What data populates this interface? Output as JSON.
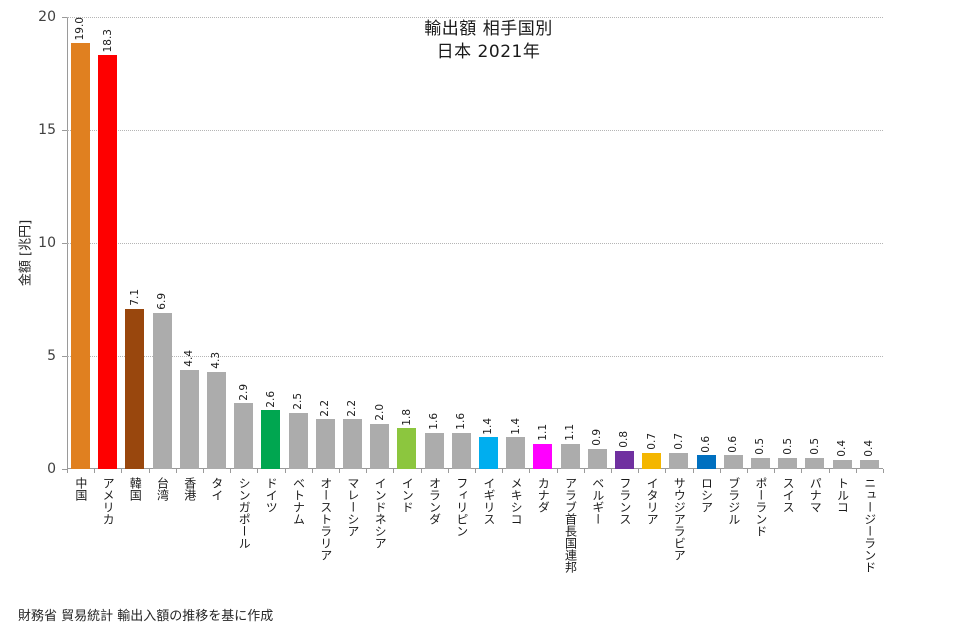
{
  "chart": {
    "title_line1": "輸出額 相手国別",
    "title_line2": "日本 2021年",
    "y_axis_title": "金額 [兆円]",
    "source_note": "財務省 貿易統計 輸出入額の推移を基に作成"
  },
  "chart_data": {
    "type": "bar",
    "title": "輸出額 相手国別 日本 2021年",
    "xlabel": "",
    "ylabel": "金額 [兆円]",
    "ylim": [
      0,
      20
    ],
    "y_ticks": [
      0,
      5,
      10,
      15,
      20
    ],
    "grid": "horizontal dotted lines at 5, 10, 15, 20",
    "legend": "none",
    "categories": [
      "中国",
      "アメリカ",
      "韓国",
      "台湾",
      "香港",
      "タイ",
      "シンガポール",
      "ドイツ",
      "ベトナム",
      "オーストラリア",
      "マレーシア",
      "インドネシア",
      "インド",
      "オランダ",
      "フィリピン",
      "イギリス",
      "メキシコ",
      "カナダ",
      "アラブ首長国連邦",
      "ベルギー",
      "フランス",
      "イタリア",
      "サウジアラビア",
      "ロシア",
      "ブラジル",
      "ポーランド",
      "スイス",
      "パナマ",
      "トルコ",
      "ニュージーランド"
    ],
    "values": [
      19.0,
      18.3,
      7.1,
      6.9,
      4.4,
      4.3,
      2.9,
      2.6,
      2.5,
      2.2,
      2.2,
      2.0,
      1.8,
      1.6,
      1.6,
      1.4,
      1.4,
      1.1,
      1.1,
      0.9,
      0.8,
      0.7,
      0.7,
      0.6,
      0.6,
      0.5,
      0.5,
      0.5,
      0.4,
      0.4
    ],
    "value_labels": [
      "19.0",
      "18.3",
      "7.1",
      "6.9",
      "4.4",
      "4.3",
      "2.9",
      "2.6",
      "2.5",
      "2.2",
      "2.2",
      "2.0",
      "1.8",
      "1.6",
      "1.6",
      "1.4",
      "1.4",
      "1.1",
      "1.1",
      "0.9",
      "0.8",
      "0.7",
      "0.7",
      "0.6",
      "0.6",
      "0.5",
      "0.5",
      "0.5",
      "0.4",
      "0.4"
    ],
    "default_bar_color": "#ACACAC",
    "bar_colors": [
      "#E08020",
      "#FE0000",
      "#99470D",
      "#ACACAC",
      "#ACACAC",
      "#ACACAC",
      "#ACACAC",
      "#00A650",
      "#ACACAC",
      "#ACACAC",
      "#ACACAC",
      "#ACACAC",
      "#8CC63E",
      "#ACACAC",
      "#ACACAC",
      "#00AEEF",
      "#ACACAC",
      "#FF00FF",
      "#ACACAC",
      "#ACACAC",
      "#7030A0",
      "#F4B600",
      "#ACACAC",
      "#0070C0",
      "#ACACAC",
      "#ACACAC",
      "#ACACAC",
      "#ACACAC",
      "#ACACAC",
      "#ACACAC"
    ]
  }
}
